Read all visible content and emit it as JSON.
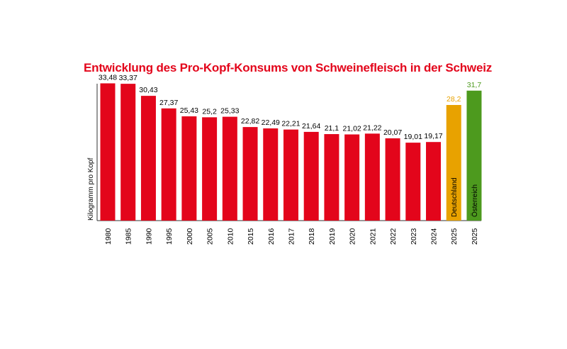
{
  "chart_data": {
    "type": "bar",
    "title": "Entwicklung des Pro-Kopf-Konsums von Schweinefleisch in der Schweiz",
    "ylabel": "Kilogramm pro Kopf",
    "xlabel": "",
    "ylim": [
      0,
      35
    ],
    "grid": false,
    "categories": [
      "1980",
      "1985",
      "1990",
      "1995",
      "2000",
      "2005",
      "2010",
      "2015",
      "2016",
      "2017",
      "2018",
      "2019",
      "2020",
      "2021",
      "2022",
      "2023",
      "2024",
      "2025",
      "2025"
    ],
    "value_labels": [
      "33,48",
      "33,37",
      "30,43",
      "27,37",
      "25,43",
      "25,2",
      "25,33",
      "22,82",
      "22,49",
      "22,21",
      "21,64",
      "21,1",
      "21,02",
      "21,22",
      "20,07",
      "19,01",
      "19,17",
      "28,2",
      "31,7"
    ],
    "values": [
      33.48,
      33.37,
      30.43,
      27.37,
      25.43,
      25.2,
      25.33,
      22.82,
      22.49,
      22.21,
      21.64,
      21.1,
      21.02,
      21.22,
      20.07,
      19.01,
      19.17,
      28.2,
      31.7
    ],
    "bar_inner_labels": [
      "",
      "",
      "",
      "",
      "",
      "",
      "",
      "",
      "",
      "",
      "",
      "",
      "",
      "",
      "",
      "",
      "",
      "Deutschland",
      "Österreich"
    ],
    "bar_colors": [
      "#e3051b",
      "#e3051b",
      "#e3051b",
      "#e3051b",
      "#e3051b",
      "#e3051b",
      "#e3051b",
      "#e3051b",
      "#e3051b",
      "#e3051b",
      "#e3051b",
      "#e3051b",
      "#e3051b",
      "#e3051b",
      "#e3051b",
      "#e3051b",
      "#e3051b",
      "#e8a200",
      "#4d9a1e"
    ],
    "value_label_colors": [
      "#000000",
      "#000000",
      "#000000",
      "#000000",
      "#000000",
      "#000000",
      "#000000",
      "#000000",
      "#000000",
      "#000000",
      "#000000",
      "#000000",
      "#000000",
      "#000000",
      "#000000",
      "#000000",
      "#000000",
      "#e8a200",
      "#4d9a1e"
    ],
    "title_color": "#e3051b"
  }
}
